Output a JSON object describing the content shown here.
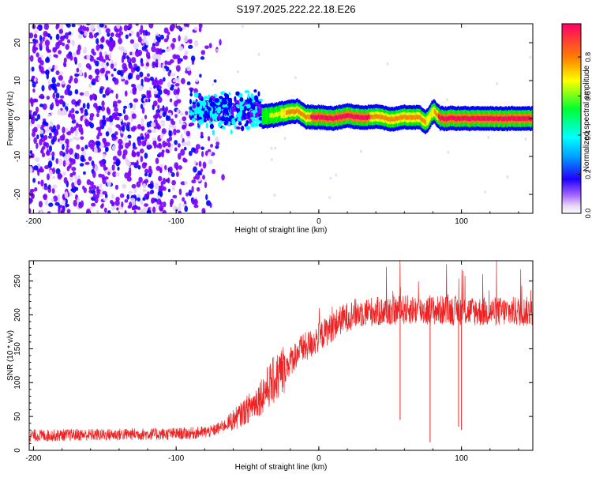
{
  "title": "S197.2025.222.22.18.E26",
  "chart_data": [
    {
      "type": "heatmap",
      "title": "S197.2025.222.22.18.E26",
      "xlabel": "Height of straight line (km)",
      "ylabel": "Frequency (Hz)",
      "xlim": [
        -203,
        150
      ],
      "ylim": [
        -25,
        25
      ],
      "x_ticks": [
        -200,
        -100,
        0,
        100
      ],
      "y_ticks": [
        -20,
        -10,
        0,
        10,
        20
      ],
      "colorbar": {
        "label": "Normalized spectral amplitude",
        "range": [
          0,
          0.97
        ],
        "ticks": [
          0.0,
          0.2,
          0.4,
          0.6,
          0.8
        ],
        "colors": [
          "#ffffff",
          "#e6d5f7",
          "#7a00ff",
          "#0000ff",
          "#00ffff",
          "#00ff00",
          "#ffff00",
          "#ff7f00",
          "#ff0066"
        ]
      },
      "ridge": {
        "x": [
          -40,
          -30,
          -20,
          -15,
          -10,
          0,
          10,
          20,
          30,
          40,
          50,
          60,
          70,
          75,
          80,
          85,
          90,
          100,
          120,
          150
        ],
        "y": [
          0.5,
          1.0,
          1.8,
          2.0,
          0.5,
          0.3,
          0.0,
          0.8,
          0.2,
          0.6,
          -0.2,
          0.4,
          0.3,
          -1.0,
          2.0,
          0.0,
          0.0,
          0.0,
          0.0,
          0.0
        ],
        "amplitude": [
          0.5,
          0.6,
          0.75,
          0.8,
          0.8,
          0.85,
          0.85,
          0.85,
          0.85,
          0.8,
          0.8,
          0.8,
          0.8,
          0.7,
          0.7,
          0.9,
          0.95,
          0.95,
          0.95,
          0.95
        ]
      },
      "noise_region_xlim": [
        -203,
        -70
      ],
      "transition_region_xlim": [
        -90,
        -40
      ]
    },
    {
      "type": "line",
      "xlabel": "Height of straight line (km)",
      "ylabel": "SNR (10 * v/v)",
      "xlim": [
        -203,
        150
      ],
      "ylim": [
        0,
        280
      ],
      "x_ticks": [
        -200,
        -100,
        0,
        100
      ],
      "y_ticks": [
        0,
        50,
        100,
        150,
        200,
        250
      ],
      "color": "#ee2222",
      "x": [
        -203,
        -190,
        -170,
        -150,
        -130,
        -110,
        -90,
        -75,
        -65,
        -55,
        -45,
        -35,
        -25,
        -15,
        -5,
        5,
        15,
        25,
        35,
        45,
        55,
        65,
        75,
        85,
        100,
        115,
        130,
        150
      ],
      "y": [
        22,
        22,
        23,
        23,
        24,
        24,
        25,
        28,
        38,
        52,
        70,
        95,
        118,
        145,
        158,
        175,
        192,
        202,
        205,
        205,
        207,
        208,
        206,
        207,
        206,
        205,
        205,
        205
      ],
      "spikes": [
        {
          "x": 57,
          "y": 45
        },
        {
          "x": 78,
          "y": 12
        },
        {
          "x": 98,
          "y": 35
        },
        {
          "x": 100,
          "y": 30
        }
      ]
    }
  ]
}
